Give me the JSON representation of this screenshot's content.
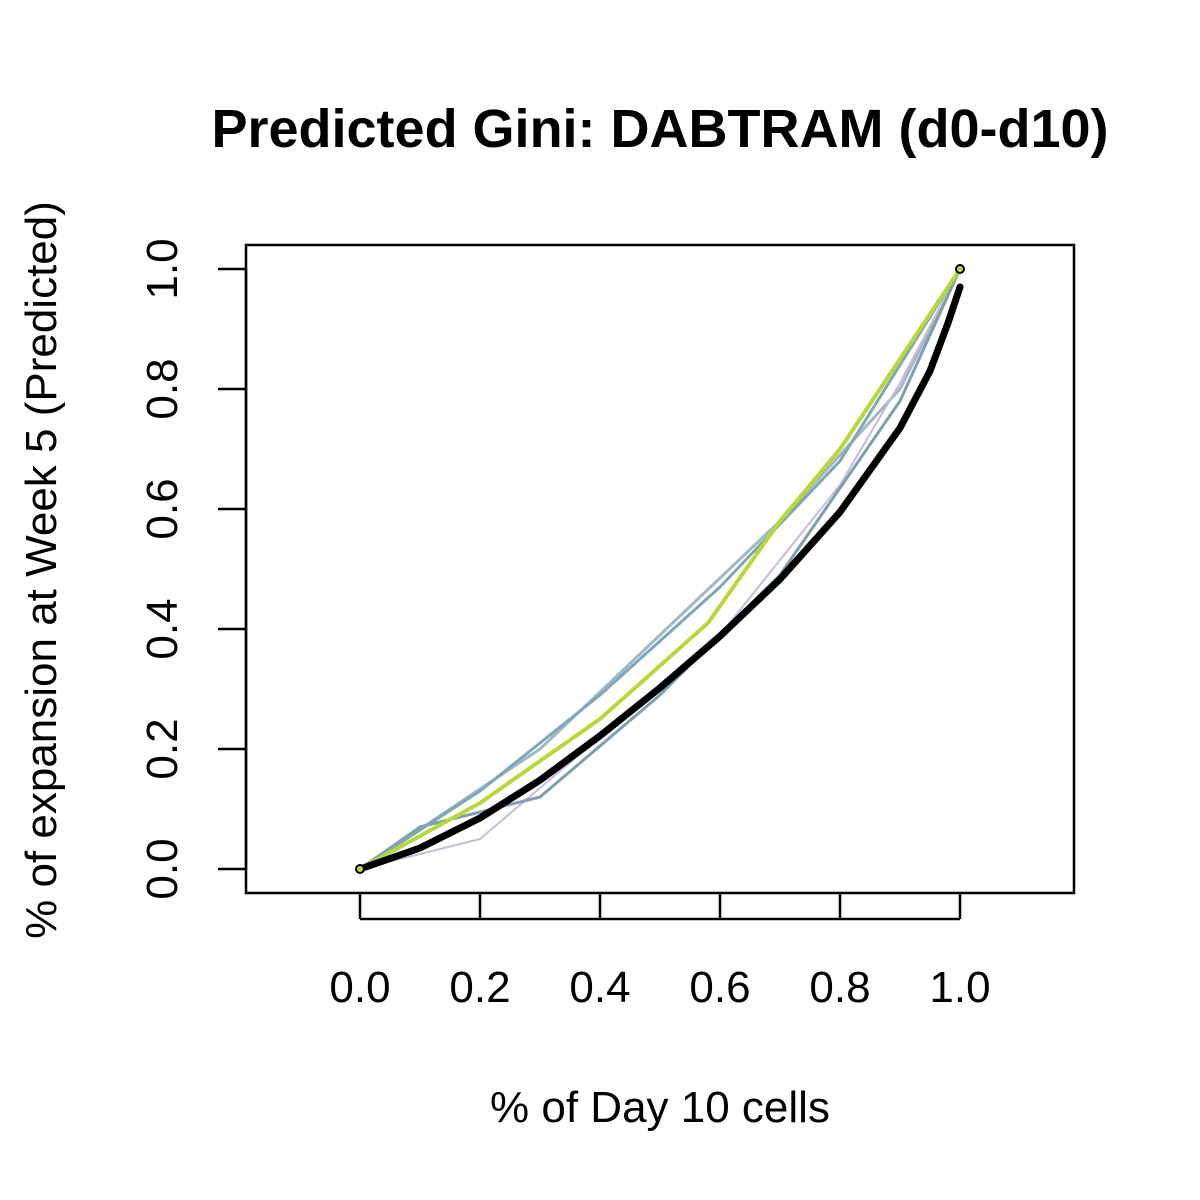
{
  "chart_data": {
    "type": "line",
    "title": "Predicted Gini: DABTRAM (d0-d10)",
    "xlabel": "% of Day 10 cells",
    "ylabel": "% of expansion at Week 5 (Predicted)",
    "xlim": [
      -0.19,
      1.19
    ],
    "ylim": [
      -0.04,
      1.04
    ],
    "xticks": [
      "0.0",
      "0.2",
      "0.4",
      "0.6",
      "0.8",
      "1.0"
    ],
    "yticks": [
      "0.0",
      "0.2",
      "0.4",
      "0.6",
      "0.8",
      "1.0"
    ],
    "grid": false,
    "legend": "none",
    "series": [
      {
        "color": "#9fb8c8",
        "width": 3,
        "x": [
          0,
          0.3,
          0.5,
          0.7,
          0.9,
          1.0
        ],
        "y": [
          0,
          0.2,
          0.39,
          0.58,
          0.8,
          1.0
        ]
      },
      {
        "color": "#c9bcd8",
        "width": 2,
        "x": [
          0,
          0.2,
          0.4,
          0.6,
          0.8,
          0.9,
          1.0
        ],
        "y": [
          0,
          0.05,
          0.22,
          0.39,
          0.64,
          0.81,
          1.0
        ]
      },
      {
        "color": "#7f9fae",
        "width": 3,
        "x": [
          0,
          0.1,
          0.3,
          0.5,
          0.7,
          0.9,
          1.0
        ],
        "y": [
          0,
          0.07,
          0.12,
          0.29,
          0.49,
          0.78,
          1.0
        ]
      },
      {
        "color": "#7fa7b5",
        "width": 3,
        "x": [
          0,
          0.2,
          0.4,
          0.6,
          0.8,
          0.9,
          1.0
        ],
        "y": [
          0,
          0.13,
          0.29,
          0.47,
          0.68,
          0.84,
          1.0
        ]
      },
      {
        "color": "#b8d83a",
        "width": 4,
        "x": [
          0,
          0.2,
          0.4,
          0.58,
          0.7,
          0.8,
          0.9,
          1.0
        ],
        "y": [
          0,
          0.11,
          0.25,
          0.41,
          0.58,
          0.7,
          0.85,
          1.0
        ]
      },
      {
        "color": "#000000",
        "width": 7,
        "x": [
          0,
          0.1,
          0.2,
          0.3,
          0.4,
          0.5,
          0.6,
          0.7,
          0.8,
          0.9,
          0.95,
          0.98,
          1.0
        ],
        "y": [
          0,
          0.035,
          0.085,
          0.148,
          0.222,
          0.302,
          0.388,
          0.483,
          0.595,
          0.735,
          0.83,
          0.91,
          0.97
        ]
      }
    ],
    "markers": [
      {
        "x": 0,
        "y": 0,
        "color": "#b8d83a",
        "edge": "#000000"
      },
      {
        "x": 1,
        "y": 1,
        "color": "#b8d83a",
        "edge": "#000000"
      }
    ]
  }
}
